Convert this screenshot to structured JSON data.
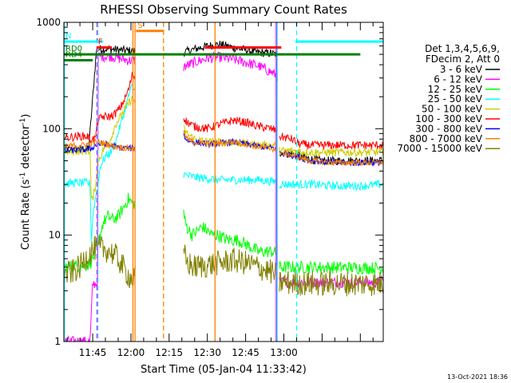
{
  "chart_data": {
    "type": "line",
    "title": "RHESSI Observing Summary Count Rates",
    "xlabel": "Start Time (05-Jan-04 11:33:42)",
    "ylabel_main": "Count Rate (s",
    "ylabel_sup": "-1",
    "ylabel_mid": " detector",
    "ylabel_sup2": "-1",
    "ylabel_end": ")",
    "footer": "13-Oct-2021 18:36",
    "yscale": "log",
    "ylim": [
      1,
      1000
    ],
    "xlim_min": [
      693.7,
      819.0
    ],
    "x_ticks": [
      {
        "t": 705,
        "label": "11:45"
      },
      {
        "t": 720,
        "label": "12:00"
      },
      {
        "t": 735,
        "label": "12:15"
      },
      {
        "t": 750,
        "label": "12:30"
      },
      {
        "t": 765,
        "label": "12:45"
      },
      {
        "t": 780,
        "label": "13:00"
      }
    ],
    "y_ticks": [
      {
        "v": 1,
        "label": "1"
      },
      {
        "v": 10,
        "label": "10"
      },
      {
        "v": 100,
        "label": "100"
      },
      {
        "v": 1000,
        "label": "1000"
      }
    ],
    "legend_header": [
      "Det 1,3,4,5,6,9,",
      "FDecim 2, Att 0"
    ],
    "legend": [
      {
        "label": "3 - 6 keV",
        "color": "#000000"
      },
      {
        "label": "6 - 12 keV",
        "color": "#ff00ff"
      },
      {
        "label": "12 - 25 keV",
        "color": "#00ff00"
      },
      {
        "label": "25 - 50 keV",
        "color": "#00ffff"
      },
      {
        "label": "50 - 100 keV",
        "color": "#cccc00"
      },
      {
        "label": "100 - 300 keV",
        "color": "#ff0000"
      },
      {
        "label": "300 - 800 keV",
        "color": "#0000ff"
      },
      {
        "label": "800 - 7000 keV",
        "color": "#ff8000"
      },
      {
        "label": "7000 - 15000 keV",
        "color": "#808000"
      }
    ],
    "flags": [
      {
        "label": "N",
        "color": "#00ffff",
        "t0": 693.7,
        "t1": 709.0,
        "level": 660
      },
      {
        "label": "",
        "color": "#00ffff",
        "t0": 784.5,
        "t1": 819.0,
        "level": 660
      },
      {
        "label": "F",
        "color": "#ff0000",
        "t0": 706.5,
        "t1": 712.5,
        "level": 580
      },
      {
        "label": "",
        "color": "#ff0000",
        "t0": 749.0,
        "t1": 779.0,
        "level": 580
      },
      {
        "label": "S",
        "color": "#ff8000",
        "t0": 722.0,
        "t1": 733.0,
        "level": 830
      },
      {
        "label": "RD0",
        "color": "#008000",
        "t0": 693.7,
        "t1": 810.0,
        "level": 500
      },
      {
        "label": "RD4",
        "color": "#008000",
        "t0": 693.7,
        "t1": 705.0,
        "level": 440
      }
    ],
    "vlines": [
      {
        "t": 693.9,
        "color": "#00ffff",
        "style": "solid"
      },
      {
        "t": 706.7,
        "color": "#ff00ff",
        "style": "dashed"
      },
      {
        "t": 707.0,
        "color": "#00ffff",
        "style": "dashed"
      },
      {
        "t": 720.8,
        "color": "#ff8000",
        "style": "solid"
      },
      {
        "t": 721.6,
        "color": "#ff8000",
        "style": "solid"
      },
      {
        "t": 732.8,
        "color": "#ff8000",
        "style": "dashed"
      },
      {
        "t": 753.0,
        "color": "#ff8000",
        "style": "solid"
      },
      {
        "t": 777.0,
        "color": "#ff00ff",
        "style": "solid"
      },
      {
        "t": 777.4,
        "color": "#00ffff",
        "style": "solid"
      },
      {
        "t": 785.0,
        "color": "#00ffff",
        "style": "dashed"
      }
    ],
    "gaps": [
      [
        721.7,
        740.5
      ],
      [
        777.6,
        778.0
      ]
    ],
    "series": [
      {
        "label": "3 - 6 keV",
        "color": "#000000",
        "noise": 0.04,
        "points": [
          [
            693.7,
            64
          ],
          [
            700,
            64
          ],
          [
            703.5,
            66
          ],
          [
            706.5,
            560
          ],
          [
            712,
            560
          ],
          [
            719,
            540
          ],
          [
            721,
            540
          ],
          [
            740.6,
            520
          ],
          [
            745,
            560
          ],
          [
            750,
            600
          ],
          [
            755,
            620
          ],
          [
            760,
            580
          ],
          [
            765,
            550
          ],
          [
            770,
            520
          ],
          [
            775,
            510
          ],
          [
            777.3,
            500
          ],
          [
            777.8,
            60
          ],
          [
            784,
            58
          ],
          [
            790,
            52
          ],
          [
            795,
            50
          ],
          [
            800,
            50
          ],
          [
            805,
            50
          ],
          [
            810,
            50
          ],
          [
            819,
            50
          ]
        ]
      },
      {
        "label": "6 - 12 keV",
        "color": "#ff00ff",
        "noise": 0.05,
        "points": [
          [
            693.7,
            1.0
          ],
          [
            704,
            1.0
          ],
          [
            705,
            3.5
          ],
          [
            707,
            3.5
          ],
          [
            707.2,
            480
          ],
          [
            712,
            480
          ],
          [
            719,
            440
          ],
          [
            721,
            440
          ],
          [
            740.6,
            380
          ],
          [
            745,
            420
          ],
          [
            750,
            460
          ],
          [
            755,
            470
          ],
          [
            760,
            450
          ],
          [
            765,
            420
          ],
          [
            770,
            390
          ],
          [
            775,
            340
          ],
          [
            777,
            320
          ],
          [
            777.5,
            3.6
          ],
          [
            790,
            3.6
          ],
          [
            819,
            3.6
          ]
        ]
      },
      {
        "label": "12 - 25 keV",
        "color": "#00ff00",
        "noise": 0.06,
        "points": [
          [
            693.7,
            5.0
          ],
          [
            697,
            5.1
          ],
          [
            700,
            5.2
          ],
          [
            703,
            5.2
          ],
          [
            705,
            6.0
          ],
          [
            707,
            8.0
          ],
          [
            709,
            13
          ],
          [
            711,
            15
          ],
          [
            713,
            14
          ],
          [
            715,
            15
          ],
          [
            717,
            18
          ],
          [
            719,
            22
          ],
          [
            720.5,
            20
          ],
          [
            740.6,
            19
          ],
          [
            741,
            14
          ],
          [
            742,
            12
          ],
          [
            744,
            10
          ],
          [
            746,
            11
          ],
          [
            748,
            12
          ],
          [
            750,
            11
          ],
          [
            752,
            10
          ],
          [
            754,
            10
          ],
          [
            756,
            9.5
          ],
          [
            758,
            9.0
          ],
          [
            760,
            9.0
          ],
          [
            762,
            9.0
          ],
          [
            764,
            8.5
          ],
          [
            766,
            8.0
          ],
          [
            768,
            7.5
          ],
          [
            770,
            7.0
          ],
          [
            772,
            7.0
          ],
          [
            774,
            7.0
          ],
          [
            776,
            7.0
          ],
          [
            777.3,
            6.5
          ],
          [
            778.2,
            5.0
          ],
          [
            790,
            5.0
          ],
          [
            819,
            4.9
          ]
        ]
      },
      {
        "label": "25 - 50 keV",
        "color": "#00ffff",
        "noise": 0.04,
        "points": [
          [
            693.7,
            30
          ],
          [
            697,
            31
          ],
          [
            700,
            31
          ],
          [
            703,
            31
          ],
          [
            704,
            30
          ],
          [
            704.5,
            8
          ],
          [
            705,
            15
          ],
          [
            706,
            22
          ],
          [
            707,
            28
          ],
          [
            708,
            45
          ],
          [
            710,
            55
          ],
          [
            712,
            60
          ],
          [
            714,
            75
          ],
          [
            716,
            110
          ],
          [
            718,
            160
          ],
          [
            719.5,
            220
          ],
          [
            720.5,
            250
          ],
          [
            740.6,
            37
          ],
          [
            745,
            35
          ],
          [
            750,
            34
          ],
          [
            755,
            33
          ],
          [
            760,
            33
          ],
          [
            765,
            33
          ],
          [
            770,
            33
          ],
          [
            775,
            32
          ],
          [
            777.3,
            32
          ],
          [
            778.2,
            30
          ],
          [
            785,
            30
          ],
          [
            790,
            30
          ],
          [
            800,
            29
          ],
          [
            810,
            29
          ],
          [
            819,
            30
          ]
        ]
      },
      {
        "label": "50 - 100 keV",
        "color": "#cccc00",
        "noise": 0.04,
        "points": [
          [
            693.7,
            60
          ],
          [
            700,
            62
          ],
          [
            704,
            62
          ],
          [
            704.5,
            20
          ],
          [
            705,
            22
          ],
          [
            706,
            28
          ],
          [
            707,
            50
          ],
          [
            708,
            55
          ],
          [
            710,
            70
          ],
          [
            712,
            80
          ],
          [
            714,
            110
          ],
          [
            716,
            130
          ],
          [
            718,
            160
          ],
          [
            719.5,
            180
          ],
          [
            720.5,
            190
          ],
          [
            740.6,
            100
          ],
          [
            742,
            90
          ],
          [
            745,
            80
          ],
          [
            750,
            75
          ],
          [
            755,
            75
          ],
          [
            760,
            75
          ],
          [
            765,
            72
          ],
          [
            770,
            70
          ],
          [
            775,
            70
          ],
          [
            777.3,
            70
          ],
          [
            778.2,
            62
          ],
          [
            785,
            62
          ],
          [
            790,
            60
          ],
          [
            800,
            60
          ],
          [
            810,
            60
          ],
          [
            819,
            60
          ]
        ]
      },
      {
        "label": "100 - 300 keV",
        "color": "#ff0000",
        "noise": 0.04,
        "points": [
          [
            693.7,
            82
          ],
          [
            700,
            85
          ],
          [
            703,
            85
          ],
          [
            704,
            80
          ],
          [
            705,
            80
          ],
          [
            706,
            80
          ],
          [
            707,
            120
          ],
          [
            709,
            130
          ],
          [
            712,
            130
          ],
          [
            714,
            140
          ],
          [
            716,
            160
          ],
          [
            718,
            200
          ],
          [
            719.5,
            250
          ],
          [
            720.5,
            320
          ],
          [
            740.6,
            130
          ],
          [
            742,
            115
          ],
          [
            745,
            105
          ],
          [
            750,
            100
          ],
          [
            755,
            110
          ],
          [
            760,
            120
          ],
          [
            765,
            115
          ],
          [
            770,
            105
          ],
          [
            775,
            100
          ],
          [
            777.3,
            95
          ],
          [
            778.2,
            85
          ],
          [
            783,
            80
          ],
          [
            786,
            72
          ],
          [
            790,
            70
          ],
          [
            800,
            70
          ],
          [
            810,
            70
          ],
          [
            819,
            70
          ]
        ]
      },
      {
        "label": "300 - 800 keV",
        "color": "#0000ff",
        "noise": 0.03,
        "points": [
          [
            693.7,
            62
          ],
          [
            700,
            63
          ],
          [
            704,
            64
          ],
          [
            706,
            70
          ],
          [
            708,
            72
          ],
          [
            710,
            72
          ],
          [
            712,
            70
          ],
          [
            714,
            68
          ],
          [
            716,
            66
          ],
          [
            718,
            66
          ],
          [
            720.5,
            65
          ],
          [
            740.6,
            88
          ],
          [
            742,
            78
          ],
          [
            745,
            75
          ],
          [
            750,
            72
          ],
          [
            755,
            73
          ],
          [
            760,
            75
          ],
          [
            765,
            72
          ],
          [
            770,
            68
          ],
          [
            775,
            66
          ],
          [
            777.3,
            65
          ],
          [
            778.2,
            60
          ],
          [
            785,
            55
          ],
          [
            790,
            50
          ],
          [
            800,
            48
          ],
          [
            810,
            48
          ],
          [
            819,
            48
          ]
        ]
      },
      {
        "label": "800 - 7000 keV",
        "color": "#ff8000",
        "noise": 0.03,
        "points": [
          [
            693.7,
            68
          ],
          [
            700,
            70
          ],
          [
            704,
            72
          ],
          [
            706,
            75
          ],
          [
            708,
            74
          ],
          [
            710,
            72
          ],
          [
            712,
            70
          ],
          [
            714,
            68
          ],
          [
            716,
            67
          ],
          [
            718,
            66
          ],
          [
            720.5,
            65
          ],
          [
            740.6,
            95
          ],
          [
            742,
            80
          ],
          [
            745,
            75
          ],
          [
            750,
            72
          ],
          [
            755,
            73
          ],
          [
            760,
            75
          ],
          [
            765,
            72
          ],
          [
            770,
            68
          ],
          [
            775,
            65
          ],
          [
            777.3,
            64
          ],
          [
            778.2,
            60
          ],
          [
            785,
            55
          ],
          [
            790,
            50
          ],
          [
            800,
            48
          ],
          [
            810,
            48
          ],
          [
            819,
            48
          ]
        ]
      },
      {
        "label": "7000 - 15000 keV",
        "color": "#808000",
        "noise": 0.12,
        "points": [
          [
            693.7,
            4.2
          ],
          [
            697,
            4.5
          ],
          [
            700,
            5.0
          ],
          [
            703,
            6.5
          ],
          [
            706,
            7.5
          ],
          [
            709,
            7.5
          ],
          [
            712,
            7.0
          ],
          [
            715,
            6.0
          ],
          [
            718,
            4.5
          ],
          [
            720.5,
            3.8
          ],
          [
            740.6,
            7.0
          ],
          [
            742,
            5.5
          ],
          [
            745,
            5.0
          ],
          [
            750,
            5.2
          ],
          [
            755,
            5.5
          ],
          [
            760,
            5.8
          ],
          [
            765,
            5.5
          ],
          [
            770,
            5.0
          ],
          [
            775,
            4.5
          ],
          [
            777.3,
            4.2
          ],
          [
            778.2,
            3.6
          ],
          [
            790,
            3.5
          ],
          [
            800,
            3.5
          ],
          [
            819,
            3.5
          ]
        ]
      }
    ]
  }
}
